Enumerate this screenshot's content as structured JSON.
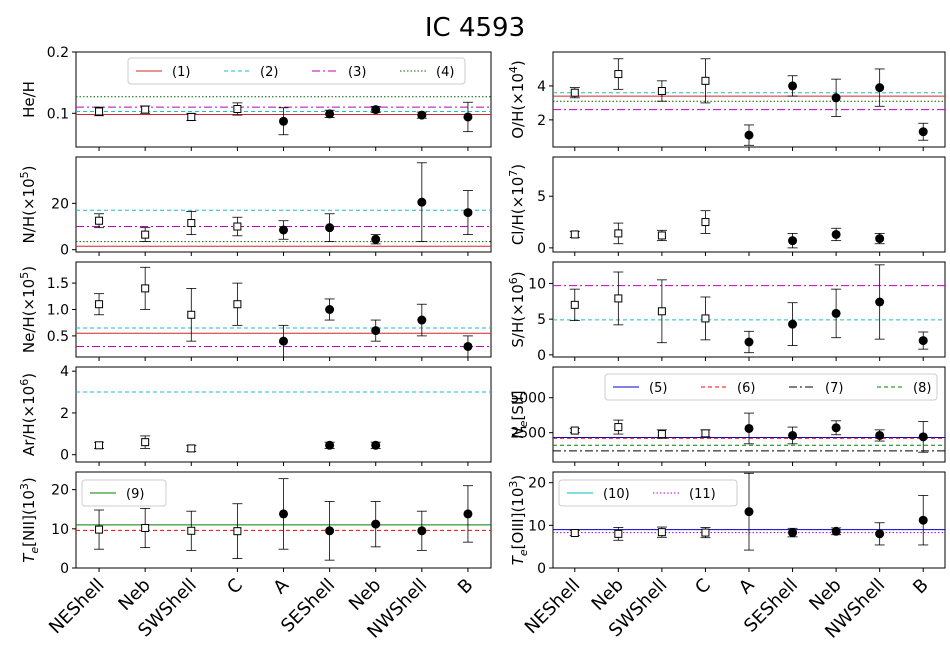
{
  "title": "IC 4593",
  "categories": [
    "NEShell",
    "Neb",
    "SWShell",
    "C",
    "A",
    "SEShell",
    "Neb",
    "NWShell",
    "B"
  ],
  "legend_labels": {
    "l1": "(1)",
    "l2": "(2)",
    "l3": "(3)",
    "l4": "(4)",
    "l5": "(5)",
    "l6": "(6)",
    "l7": "(7)",
    "l8": "(8)",
    "l9": "(9)",
    "l10": "(10)",
    "l11": "(11)"
  },
  "colors": {
    "l1": "#d62728",
    "l2": "#17becf",
    "l3": "#bf00bf",
    "l4": "#006400",
    "l5": "#0000cc",
    "l6": "#ff0000",
    "l7": "#000000",
    "l8": "#008000",
    "l9": "#008000",
    "l10": "#00bfbf",
    "l11": "#bf00bf"
  },
  "chart_data": [
    {
      "id": "he",
      "type": "scatter",
      "ylabel": "He/H",
      "ylim": [
        0.045,
        0.2
      ],
      "yticks": [
        0.1,
        0.2
      ],
      "ytick_labels": [
        "0.1",
        "0.2"
      ],
      "values": [
        0.103,
        0.106,
        0.094,
        0.107,
        0.087,
        0.099,
        0.106,
        0.097,
        0.094
      ],
      "errors": [
        0.007,
        0.006,
        0.006,
        0.01,
        0.022,
        0.006,
        0.005,
        0.005,
        0.024
      ],
      "hlines": [
        {
          "y": 0.098,
          "style": "l1"
        },
        {
          "y": 0.103,
          "style": "l2"
        },
        {
          "y": 0.11,
          "style": "l3"
        },
        {
          "y": 0.127,
          "style": "l4"
        }
      ]
    },
    {
      "id": "o",
      "type": "scatter",
      "ylabel": "O/H(×10",
      "ysup": "4",
      "ylim": [
        0.4,
        6.0
      ],
      "yticks": [
        2,
        4
      ],
      "ytick_labels": [
        "2",
        "4"
      ],
      "values": [
        3.6,
        4.7,
        3.7,
        4.3,
        1.1,
        4.0,
        3.3,
        3.9,
        1.3
      ],
      "errors": [
        0.3,
        0.9,
        0.6,
        1.3,
        0.6,
        0.6,
        1.1,
        1.1,
        0.5
      ],
      "hlines": [
        {
          "y": 3.4,
          "style": "l1"
        },
        {
          "y": 3.6,
          "style": "l2"
        },
        {
          "y": 2.6,
          "style": "l3"
        },
        {
          "y": 3.1,
          "style": "l4"
        }
      ]
    },
    {
      "id": "n",
      "type": "scatter",
      "ylabel": "N/H(×10",
      "ysup": "5",
      "ylim": [
        -1,
        40
      ],
      "yticks": [
        0,
        20
      ],
      "ytick_labels": [
        "0",
        "20"
      ],
      "values": [
        12.5,
        6.5,
        11.5,
        10.0,
        8.5,
        9.5,
        4.5,
        20.5,
        16.0
      ],
      "errors": [
        3,
        3,
        5,
        4,
        4,
        6,
        2,
        17,
        9.5
      ],
      "hlines": [
        {
          "y": 1.5,
          "style": "l1"
        },
        {
          "y": 17,
          "style": "l2"
        },
        {
          "y": 10,
          "style": "l3"
        },
        {
          "y": 3.5,
          "style": "l4"
        }
      ]
    },
    {
      "id": "cl",
      "type": "scatter",
      "ylabel": "Cl/H(×10",
      "ysup": "7",
      "ylim": [
        -0.4,
        8.8
      ],
      "yticks": [
        0,
        5
      ],
      "ytick_labels": [
        "0",
        "5"
      ],
      "values": [
        1.3,
        1.4,
        1.2,
        2.5,
        null,
        0.7,
        1.3,
        0.9,
        null
      ],
      "errors": [
        0.3,
        1.0,
        0.5,
        1.1,
        null,
        0.7,
        0.6,
        0.5,
        null
      ],
      "hlines": []
    },
    {
      "id": "ne",
      "type": "scatter",
      "ylabel": "Ne/H(×10",
      "ysup": "5",
      "ylim": [
        0.1,
        1.9
      ],
      "yticks": [
        0.5,
        1.0,
        1.5
      ],
      "ytick_labels": [
        "0.5",
        "1.0",
        "1.5"
      ],
      "values": [
        1.1,
        1.4,
        0.9,
        1.1,
        0.4,
        1.0,
        0.6,
        0.8,
        0.3
      ],
      "errors": [
        0.2,
        0.4,
        0.5,
        0.4,
        0.3,
        0.2,
        0.2,
        0.3,
        0.2
      ],
      "hlines": [
        {
          "y": 0.55,
          "style": "l1"
        },
        {
          "y": 0.65,
          "style": "l2"
        },
        {
          "y": 0.3,
          "style": "l3"
        }
      ]
    },
    {
      "id": "s",
      "type": "scatter",
      "ylabel": "S/H(×10",
      "ysup": "6",
      "ylim": [
        -0.3,
        13.0
      ],
      "yticks": [
        0,
        5,
        10
      ],
      "ytick_labels": [
        "0",
        "5",
        "10"
      ],
      "values": [
        7.0,
        7.9,
        6.1,
        5.1,
        1.8,
        4.3,
        5.8,
        7.4,
        2.0
      ],
      "errors": [
        2.2,
        3.7,
        4.4,
        3.0,
        1.5,
        3.0,
        3.4,
        5.2,
        1.2
      ],
      "hlines": [
        {
          "y": 4.9,
          "style": "l2"
        },
        {
          "y": 9.7,
          "style": "l3"
        }
      ]
    },
    {
      "id": "ar",
      "type": "scatter",
      "ylabel": "Ar/H(×10",
      "ysup": "6",
      "ylim": [
        -0.35,
        4.2
      ],
      "yticks": [
        0,
        2,
        4
      ],
      "ytick_labels": [
        "0",
        "2",
        "4"
      ],
      "values": [
        0.45,
        0.6,
        0.3,
        null,
        null,
        0.45,
        0.45,
        null,
        null
      ],
      "errors": [
        0.15,
        0.3,
        0.15,
        null,
        null,
        0.15,
        0.15,
        null,
        null
      ],
      "hlines": [
        {
          "y": 3.0,
          "style": "l2"
        }
      ]
    },
    {
      "id": "nesii",
      "type": "scatter",
      "ylabel": "N",
      "ylabel_sub": "e",
      "ylabel_rest": "[SII]",
      "ylim": [
        400,
        7200
      ],
      "yticks": [
        2500,
        5000
      ],
      "ytick_labels": [
        "2500",
        "5000"
      ],
      "values": [
        2650,
        2900,
        2400,
        2450,
        2800,
        2300,
        2850,
        2300,
        2200
      ],
      "errors": [
        150,
        500,
        300,
        250,
        1100,
        600,
        500,
        400,
        1100
      ],
      "hlines": [
        {
          "y": 2150,
          "style": "l5"
        },
        {
          "y": 2100,
          "style": "l6"
        },
        {
          "y": 1200,
          "style": "l7"
        },
        {
          "y": 1600,
          "style": "l8"
        }
      ]
    },
    {
      "id": "tenii",
      "type": "scatter",
      "ylabel": "T",
      "ylabel_sub": "e",
      "ylabel_rest": "[NII](10",
      "ysup": "3",
      "ylim": [
        0,
        24.5
      ],
      "yticks": [
        0,
        10,
        20
      ],
      "ytick_labels": [
        "0",
        "10",
        "20"
      ],
      "values": [
        9.8,
        10.2,
        9.5,
        9.4,
        13.8,
        9.5,
        11.2,
        9.5,
        13.8
      ],
      "errors": [
        5,
        5,
        5,
        7,
        9,
        7.5,
        5.8,
        5,
        7.2
      ],
      "hlines": [
        {
          "y": 11,
          "style": "l9"
        },
        {
          "y": 9.6,
          "style": "l6"
        }
      ]
    },
    {
      "id": "teoiii",
      "type": "scatter",
      "ylabel": "T",
      "ylabel_sub": "e",
      "ylabel_rest": "[OIII](10",
      "ysup": "3",
      "ylim": [
        0,
        22.5
      ],
      "yticks": [
        0,
        10,
        20
      ],
      "ytick_labels": [
        "0",
        "10",
        "20"
      ],
      "values": [
        8.2,
        8.0,
        8.4,
        8.3,
        13.2,
        8.3,
        8.6,
        8.0,
        11.2
      ],
      "errors": [
        0.6,
        1.5,
        1.2,
        1.2,
        9,
        1,
        0.8,
        2.6,
        5.8
      ],
      "hlines": [
        {
          "y": 9.0,
          "style": "l5"
        },
        {
          "y": 8.3,
          "style": "l11"
        }
      ]
    }
  ],
  "open_marker_indices": [
    0,
    1,
    2,
    3
  ]
}
